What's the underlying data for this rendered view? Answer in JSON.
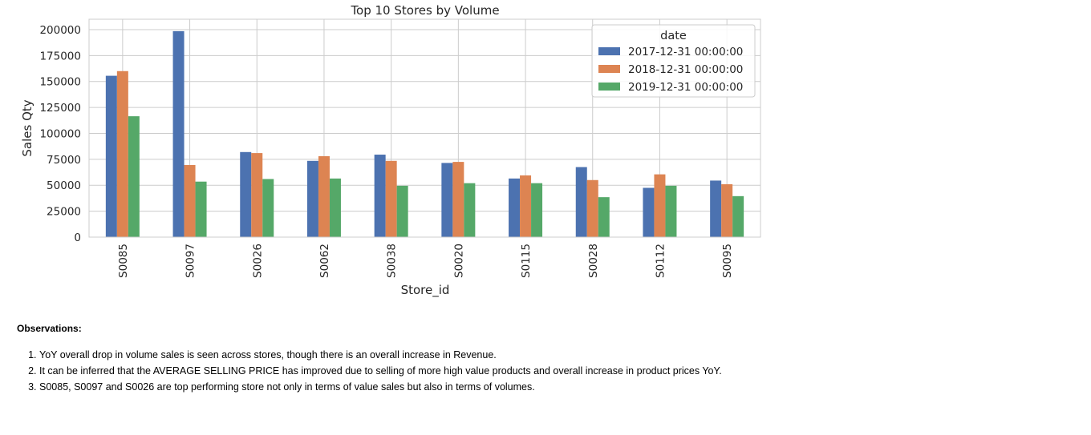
{
  "chart_data": {
    "type": "bar",
    "title": "Top 10 Stores by Volume",
    "xlabel": "Store_id",
    "ylabel": "Sales Qty",
    "categories": [
      "S0085",
      "S0097",
      "S0026",
      "S0062",
      "S0038",
      "S0020",
      "S0115",
      "S0028",
      "S0112",
      "S0095"
    ],
    "series": [
      {
        "name": "2017-12-31 00:00:00",
        "color": "#4c72b0",
        "values": [
          155500,
          198500,
          82000,
          73500,
          79500,
          71500,
          56500,
          67500,
          47500,
          54500
        ]
      },
      {
        "name": "2018-12-31 00:00:00",
        "color": "#dd8452",
        "values": [
          160000,
          69500,
          81000,
          78000,
          73500,
          72500,
          59500,
          55000,
          60500,
          51000
        ]
      },
      {
        "name": "2019-12-31 00:00:00",
        "color": "#55a868",
        "values": [
          116500,
          53500,
          56000,
          56500,
          49500,
          52000,
          52000,
          38500,
          49500,
          39500
        ]
      }
    ],
    "ylim": [
      0,
      210000
    ],
    "yticks": [
      0,
      25000,
      50000,
      75000,
      100000,
      125000,
      150000,
      175000,
      200000
    ],
    "legend_title": "date",
    "legend_position": "top-right",
    "grid": true
  },
  "observations": {
    "title": "Observations:",
    "items": [
      "YoY overall drop in volume sales is seen across stores, though there is an overall increase in Revenue.",
      "It can be inferred that the AVERAGE SELLING PRICE has improved due to selling of more high value products and overall increase in product prices YoY.",
      "S0085, S0097 and S0026 are top performing store not only in terms of value sales but also in terms of volumes."
    ]
  }
}
